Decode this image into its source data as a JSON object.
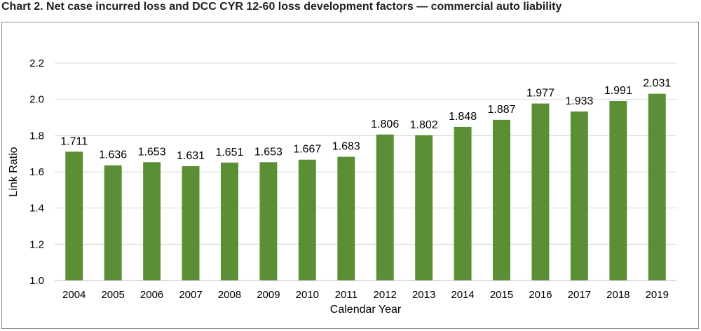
{
  "title": "Chart 2. Net case incurred loss and DCC CYR 12-60 loss development factors — commercial auto liability",
  "chart_data": {
    "type": "bar",
    "title": "Chart 2. Net case incurred loss and DCC CYR 12-60 loss development factors — commercial auto liability",
    "xlabel": "Calendar Year",
    "ylabel": "Link Ratio",
    "categories": [
      "2004",
      "2005",
      "2006",
      "2007",
      "2008",
      "2009",
      "2010",
      "2011",
      "2012",
      "2013",
      "2014",
      "2015",
      "2016",
      "2017",
      "2018",
      "2019"
    ],
    "values": [
      1.711,
      1.636,
      1.653,
      1.631,
      1.651,
      1.653,
      1.667,
      1.683,
      1.806,
      1.802,
      1.848,
      1.887,
      1.977,
      1.933,
      1.991,
      2.031
    ],
    "data_labels": [
      "1.711",
      "1.636",
      "1.653",
      "1.631",
      "1.651",
      "1.653",
      "1.667",
      "1.683",
      "1.806",
      "1.802",
      "1.848",
      "1.887",
      "1.977",
      "1.933",
      "1.991",
      "2.031"
    ],
    "ylim": [
      1.0,
      2.2
    ],
    "yticks": [
      "1.0",
      "1.2",
      "1.4",
      "1.6",
      "1.8",
      "2.0",
      "2.2"
    ],
    "grid": true,
    "legend": false,
    "bar_color": "#5b8f35",
    "grid_color": "#d9d9d9"
  }
}
